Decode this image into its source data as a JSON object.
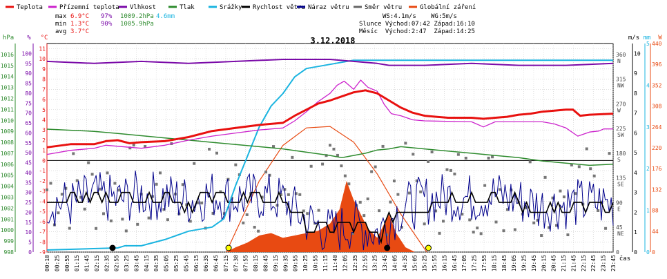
{
  "legend": [
    {
      "label": "Teplota",
      "color": "#e8110f"
    },
    {
      "label": "Přízemní teplota",
      "color": "#cc22cc"
    },
    {
      "label": "Vlhkost",
      "color": "#7a0aa8"
    },
    {
      "label": "Tlak",
      "color": "#2e8b2e"
    },
    {
      "label": "Srážky",
      "color": "#1ab4e0"
    },
    {
      "label": "Rychlost větru",
      "color": "#000000"
    },
    {
      "label": "Náraz větru",
      "color": "#00008b"
    },
    {
      "label": "Směr větru",
      "color": "#666666"
    },
    {
      "label": "Globální záření",
      "color": "#e84a12"
    }
  ],
  "stats": {
    "max": {
      "label": "max",
      "temp": "6.9°C",
      "hum": "97%",
      "press": "1009.2hPa",
      "rain": "4.6mm"
    },
    "min": {
      "label": "min",
      "temp": "1.3°C",
      "hum": "90%",
      "press": "1005.9hPa"
    },
    "avg": {
      "label": "avg",
      "temp": "3.7°C"
    }
  },
  "wind_info": {
    "ws": "WS:4.1m/s",
    "wg": "WG:5m/s"
  },
  "sun": {
    "line": "Slunce Východ:07:42 Západ:16:10"
  },
  "moon": {
    "line": "Měsíc  Východ:2:47  Západ:14:25"
  },
  "chart_title": "3.12.2018",
  "axis_units": {
    "hpa": "hPa",
    "pct": "%",
    "degc": "°C",
    "ms": "m/s",
    "mm": "mm",
    "wm2": "W",
    "time": "čas"
  },
  "chart_data": {
    "type": "line",
    "title": "3.12.2018",
    "xlabel": "čas",
    "x_ticks": [
      "00:10",
      "00:25",
      "00:55",
      "01:15",
      "01:45",
      "02:15",
      "02:35",
      "02:55",
      "03:25",
      "03:45",
      "04:15",
      "04:35",
      "05:05",
      "05:25",
      "05:45",
      "06:15",
      "06:35",
      "06:45",
      "07:15",
      "07:30",
      "07:55",
      "08:15",
      "08:45",
      "09:15",
      "09:35",
      "09:55",
      "10:25",
      "10:55",
      "11:15",
      "11:40",
      "12:05",
      "12:35",
      "12:55",
      "13:25",
      "13:45",
      "14:05",
      "14:35",
      "15:05",
      "15:25",
      "15:55",
      "16:15",
      "16:45",
      "17:05",
      "17:25",
      "17:55",
      "18:15",
      "18:45",
      "19:05",
      "19:25",
      "19:45",
      "20:15",
      "20:45",
      "21:15",
      "21:45",
      "22:15",
      "22:45",
      "23:15",
      "23:45"
    ],
    "x_range_hours": [
      0,
      24
    ],
    "axes": {
      "pressure_hpa": {
        "range": [
          998,
          1017
        ],
        "ticks": [
          998,
          999,
          1000,
          1001,
          1002,
          1003,
          1004,
          1005,
          1006,
          1007,
          1008,
          1009,
          1010,
          1011,
          1012,
          1013,
          1014,
          1015,
          1016
        ]
      },
      "humidity_pct": {
        "range": [
          0,
          105
        ],
        "ticks": [
          0,
          5,
          10,
          15,
          20,
          25,
          30,
          35,
          40,
          45,
          50,
          55,
          60,
          65,
          70,
          75,
          80,
          85,
          90,
          95,
          100
        ]
      },
      "temperature_c": {
        "range": [
          -9,
          11.5
        ],
        "ticks": [
          -9,
          -8,
          -7,
          -6,
          -5,
          -4,
          -3,
          -2,
          -1,
          0,
          1,
          2,
          3,
          4,
          5,
          6,
          7,
          8,
          9,
          10,
          11
        ]
      },
      "wind_dir": {
        "range": [
          0,
          380
        ],
        "ticks": [
          0,
          45,
          90,
          135,
          180,
          225,
          270,
          315,
          360
        ],
        "labels": [
          "0",
          "45\nNE",
          "90\nE",
          "135\nSE",
          "180\nS",
          "225\nSW",
          "270\nW",
          "315\nNW",
          "360\nN"
        ]
      },
      "wind_ms": {
        "range": [
          0,
          10.5
        ],
        "ticks": [
          0,
          1,
          2,
          3,
          4,
          5,
          6,
          7,
          8,
          9,
          10
        ]
      },
      "rain_mm": {
        "range": [
          0,
          5
        ],
        "ticks": [
          0,
          1,
          2,
          3,
          4,
          5
        ]
      },
      "radiation_w": {
        "range": [
          0,
          440
        ],
        "ticks": [
          0,
          44,
          88,
          132,
          176,
          220,
          264,
          308,
          352,
          396,
          440
        ]
      }
    },
    "series": [
      {
        "name": "Teplota",
        "axis": "temperature_c",
        "color": "#e8110f",
        "points": [
          [
            0,
            1.3
          ],
          [
            1,
            1.6
          ],
          [
            2,
            1.6
          ],
          [
            2.5,
            1.9
          ],
          [
            3,
            2.0
          ],
          [
            3.5,
            1.7
          ],
          [
            4,
            1.8
          ],
          [
            5,
            1.9
          ],
          [
            6,
            2.3
          ],
          [
            7,
            2.9
          ],
          [
            8,
            3.2
          ],
          [
            9,
            3.5
          ],
          [
            10,
            3.7
          ],
          [
            10.5,
            4.4
          ],
          [
            11,
            5.0
          ],
          [
            11.5,
            5.6
          ],
          [
            12,
            5.9
          ],
          [
            12.5,
            6.3
          ],
          [
            13,
            6.7
          ],
          [
            13.5,
            6.9
          ],
          [
            14,
            6.6
          ],
          [
            14.5,
            5.9
          ],
          [
            15,
            5.2
          ],
          [
            15.5,
            4.7
          ],
          [
            16,
            4.4
          ],
          [
            16.5,
            4.3
          ],
          [
            17,
            4.2
          ],
          [
            18,
            4.2
          ],
          [
            18.5,
            4.1
          ],
          [
            19,
            4.2
          ],
          [
            19.5,
            4.3
          ],
          [
            20,
            4.5
          ],
          [
            20.5,
            4.6
          ],
          [
            21,
            4.8
          ],
          [
            21.5,
            4.9
          ],
          [
            22,
            5.0
          ],
          [
            22.3,
            5.0
          ],
          [
            22.6,
            4.4
          ],
          [
            23,
            4.5
          ],
          [
            24,
            4.6
          ]
        ]
      },
      {
        "name": "Přízemní teplota",
        "axis": "temperature_c",
        "color": "#cc22cc",
        "points": [
          [
            0,
            0.6
          ],
          [
            1,
            1.0
          ],
          [
            2,
            1.2
          ],
          [
            2.5,
            1.5
          ],
          [
            3,
            1.4
          ],
          [
            4,
            1.2
          ],
          [
            5,
            1.5
          ],
          [
            6,
            2.0
          ],
          [
            7,
            2.4
          ],
          [
            8,
            2.7
          ],
          [
            9,
            3.0
          ],
          [
            10,
            3.2
          ],
          [
            10.5,
            3.9
          ],
          [
            11,
            4.8
          ],
          [
            11.5,
            5.8
          ],
          [
            12,
            6.6
          ],
          [
            12.3,
            7.4
          ],
          [
            12.6,
            7.8
          ],
          [
            13,
            7.0
          ],
          [
            13.3,
            7.9
          ],
          [
            13.6,
            7.2
          ],
          [
            14,
            6.8
          ],
          [
            14.3,
            5.5
          ],
          [
            14.6,
            4.6
          ],
          [
            15,
            4.4
          ],
          [
            15.5,
            4.0
          ],
          [
            16,
            3.9
          ],
          [
            18,
            3.8
          ],
          [
            18.5,
            3.3
          ],
          [
            19,
            3.8
          ],
          [
            21,
            3.8
          ],
          [
            21.5,
            3.6
          ],
          [
            22,
            3.2
          ],
          [
            22.5,
            2.4
          ],
          [
            23,
            2.8
          ],
          [
            23.4,
            2.9
          ],
          [
            23.6,
            3.1
          ],
          [
            24,
            3.1
          ]
        ]
      },
      {
        "name": "Vlhkost",
        "axis": "humidity_pct",
        "color": "#7a0aa8",
        "points": [
          [
            0,
            96
          ],
          [
            2,
            95
          ],
          [
            4,
            96
          ],
          [
            6,
            95
          ],
          [
            8,
            96
          ],
          [
            10,
            97
          ],
          [
            11,
            97
          ],
          [
            12,
            97
          ],
          [
            13,
            96
          ],
          [
            14,
            95
          ],
          [
            14.5,
            94
          ],
          [
            15,
            94
          ],
          [
            16,
            94
          ],
          [
            18,
            95
          ],
          [
            20,
            94
          ],
          [
            22,
            94
          ],
          [
            24,
            95
          ]
        ]
      },
      {
        "name": "Tlak",
        "axis": "pressure_hpa",
        "color": "#2e8b2e",
        "points": [
          [
            0,
            1009.2
          ],
          [
            1,
            1009.1
          ],
          [
            2,
            1009.0
          ],
          [
            3,
            1008.8
          ],
          [
            4,
            1008.6
          ],
          [
            5,
            1008.4
          ],
          [
            6,
            1008.2
          ],
          [
            7,
            1008.0
          ],
          [
            8,
            1007.8
          ],
          [
            9,
            1007.6
          ],
          [
            10,
            1007.4
          ],
          [
            11,
            1007.1
          ],
          [
            12,
            1006.8
          ],
          [
            12.5,
            1006.6
          ],
          [
            13,
            1006.8
          ],
          [
            13.5,
            1007.0
          ],
          [
            14,
            1007.3
          ],
          [
            14.5,
            1007.4
          ],
          [
            15,
            1007.6
          ],
          [
            16,
            1007.4
          ],
          [
            17,
            1007.2
          ],
          [
            18,
            1007.0
          ],
          [
            19,
            1006.8
          ],
          [
            20,
            1006.6
          ],
          [
            21,
            1006.3
          ],
          [
            22,
            1006.1
          ],
          [
            23,
            1005.9
          ],
          [
            24,
            1006.0
          ]
        ]
      },
      {
        "name": "Srážky",
        "axis": "rain_mm",
        "color": "#1ab4e0",
        "points": [
          [
            0,
            0.05
          ],
          [
            3,
            0.1
          ],
          [
            3.3,
            0.15
          ],
          [
            4,
            0.15
          ],
          [
            5,
            0.3
          ],
          [
            6,
            0.5
          ],
          [
            7,
            0.6
          ],
          [
            7.5,
            0.8
          ],
          [
            8,
            1.6
          ],
          [
            8.5,
            2.3
          ],
          [
            9,
            3.0
          ],
          [
            9.5,
            3.5
          ],
          [
            10,
            3.8
          ],
          [
            10.5,
            4.2
          ],
          [
            11,
            4.4
          ],
          [
            12,
            4.5
          ],
          [
            13,
            4.6
          ],
          [
            24,
            4.6
          ]
        ]
      },
      {
        "name": "Rychlost větru",
        "axis": "wind_ms",
        "color": "#000000",
        "points": [
          [
            0,
            2.5
          ],
          [
            1,
            2.8
          ],
          [
            2,
            2.6
          ],
          [
            3,
            2.9
          ],
          [
            4,
            2.7
          ],
          [
            5,
            2.8
          ],
          [
            6,
            2.5
          ],
          [
            7,
            2.8
          ],
          [
            8,
            2.6
          ],
          [
            9,
            2.5
          ],
          [
            10,
            2.6
          ],
          [
            11,
            1.4
          ],
          [
            12,
            1.2
          ],
          [
            12.5,
            1.5
          ],
          [
            13,
            1.2
          ],
          [
            14,
            0.8
          ],
          [
            15,
            2.0
          ],
          [
            16,
            2.5
          ],
          [
            17,
            2.6
          ],
          [
            18,
            2.8
          ],
          [
            19,
            2.6
          ],
          [
            20,
            2.5
          ],
          [
            21,
            2.0
          ],
          [
            22,
            2.1
          ],
          [
            23,
            2.3
          ],
          [
            24,
            2.2
          ]
        ]
      },
      {
        "name": "Náraz větru",
        "axis": "wind_ms",
        "color": "#00008b",
        "points": [
          [
            0,
            2.6
          ],
          [
            1,
            2.4
          ],
          [
            2,
            2.8
          ],
          [
            3,
            2.6
          ],
          [
            4,
            2.9
          ],
          [
            5,
            2.8
          ],
          [
            6,
            2.6
          ],
          [
            7,
            2.9
          ],
          [
            8,
            2.7
          ],
          [
            9,
            2.8
          ],
          [
            10,
            2.6
          ],
          [
            11,
            1.6
          ],
          [
            12,
            1.0
          ],
          [
            13,
            1.4
          ],
          [
            14,
            1.0
          ],
          [
            15,
            2.2
          ],
          [
            16,
            2.6
          ],
          [
            17,
            2.8
          ],
          [
            18,
            2.7
          ],
          [
            19,
            2.9
          ],
          [
            20,
            2.6
          ],
          [
            21,
            2.3
          ],
          [
            22,
            2.4
          ],
          [
            23,
            2.5
          ],
          [
            24,
            2.4
          ]
        ]
      },
      {
        "name": "Globální záření",
        "axis": "radiation_w",
        "color": "#e84a12",
        "points": [
          [
            7.6,
            0
          ],
          [
            8,
            10
          ],
          [
            8.5,
            20
          ],
          [
            9,
            35
          ],
          [
            9.5,
            40
          ],
          [
            10,
            30
          ],
          [
            10.5,
            35
          ],
          [
            11,
            40
          ],
          [
            11.5,
            45
          ],
          [
            12,
            60
          ],
          [
            12.4,
            90
          ],
          [
            12.7,
            150
          ],
          [
            13,
            110
          ],
          [
            13.3,
            80
          ],
          [
            13.6,
            50
          ],
          [
            14,
            30
          ],
          [
            14.3,
            60
          ],
          [
            14.5,
            80
          ],
          [
            14.8,
            40
          ],
          [
            15.2,
            10
          ],
          [
            15.6,
            0
          ]
        ]
      },
      {
        "name": "Globální záření (teoretické)",
        "axis": "radiation_w",
        "color": "#e84a12",
        "points": [
          [
            7.6,
            0
          ],
          [
            9,
            150
          ],
          [
            10,
            225
          ],
          [
            11,
            262
          ],
          [
            12,
            265
          ],
          [
            13,
            232
          ],
          [
            14,
            165
          ],
          [
            15,
            80
          ],
          [
            16.1,
            0
          ]
        ]
      }
    ],
    "markers": [
      {
        "type": "moonrise",
        "time": 2.78,
        "color": "#000000"
      },
      {
        "type": "sunrise",
        "time": 7.7,
        "color": "#ffff00"
      },
      {
        "type": "moonset",
        "time": 14.42,
        "color": "#000000"
      },
      {
        "type": "sunset",
        "time": 16.17,
        "color": "#ffff00"
      }
    ]
  }
}
